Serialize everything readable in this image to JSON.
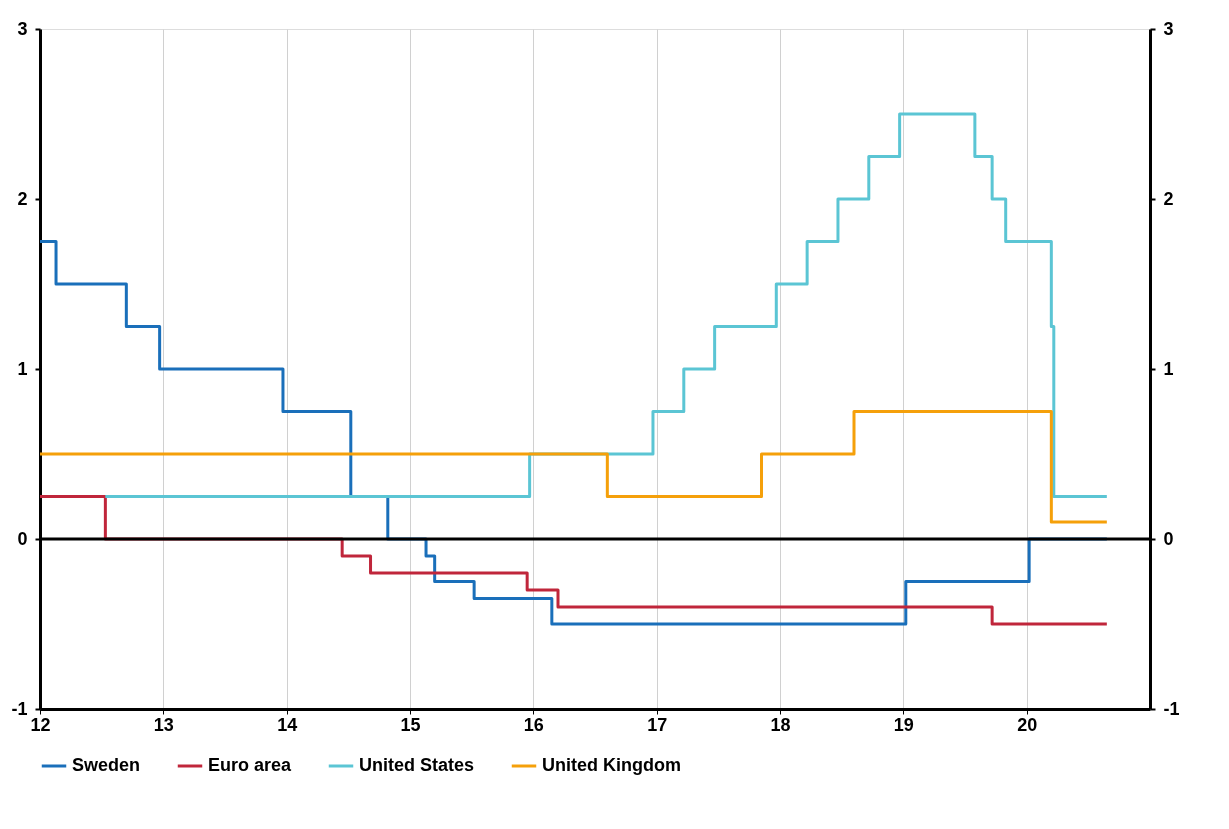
{
  "chart_data": {
    "type": "step",
    "xlim": [
      12,
      21
    ],
    "xticks": [
      12,
      13,
      14,
      15,
      16,
      17,
      18,
      19,
      20
    ],
    "ylim": [
      -1,
      3
    ],
    "yticks": [
      -1,
      0,
      1,
      2,
      3
    ],
    "y2lim": [
      -1,
      3
    ],
    "y2ticks": [
      -1,
      0,
      1,
      2,
      3
    ],
    "grid": "x",
    "legend": "bottom",
    "line_style": "solid",
    "marker": "none",
    "ref_lines": [
      {
        "axis": "y",
        "value": 0,
        "color": "#000000",
        "line_style": "solid"
      }
    ],
    "series": [
      {
        "name": "Sweden",
        "color": "#1a6fba",
        "x": [
          12.0,
          12.13,
          12.7,
          12.97,
          13.97,
          14.52,
          14.82,
          15.13,
          15.2,
          15.52,
          16.15,
          19.02,
          20.02,
          20.65
        ],
        "values": [
          1.75,
          1.5,
          1.25,
          1.0,
          0.75,
          0.25,
          0.0,
          -0.1,
          -0.25,
          -0.35,
          -0.5,
          -0.25,
          0.0,
          0.0
        ]
      },
      {
        "name": "Euro area",
        "color": "#c0263b",
        "x": [
          12.0,
          12.53,
          14.45,
          14.68,
          15.95,
          16.2,
          19.72,
          20.65
        ],
        "values": [
          0.25,
          0.0,
          -0.1,
          -0.2,
          -0.3,
          -0.4,
          -0.5,
          -0.5
        ]
      },
      {
        "name": "United States",
        "color": "#5bc5d4",
        "x": [
          12.53,
          15.97,
          16.97,
          17.22,
          17.47,
          17.97,
          18.22,
          18.47,
          18.72,
          18.97,
          19.58,
          19.72,
          19.83,
          20.2,
          20.22,
          20.65
        ],
        "values": [
          0.25,
          0.5,
          0.75,
          1.0,
          1.25,
          1.5,
          1.75,
          2.0,
          2.25,
          2.5,
          2.25,
          2.0,
          1.75,
          1.25,
          0.25,
          0.25
        ]
      },
      {
        "name": "United Kingdom",
        "color": "#f5a00a",
        "x": [
          12.0,
          16.6,
          17.85,
          18.6,
          20.2,
          20.65
        ],
        "values": [
          0.5,
          0.25,
          0.5,
          0.75,
          0.1,
          0.1
        ]
      }
    ]
  }
}
